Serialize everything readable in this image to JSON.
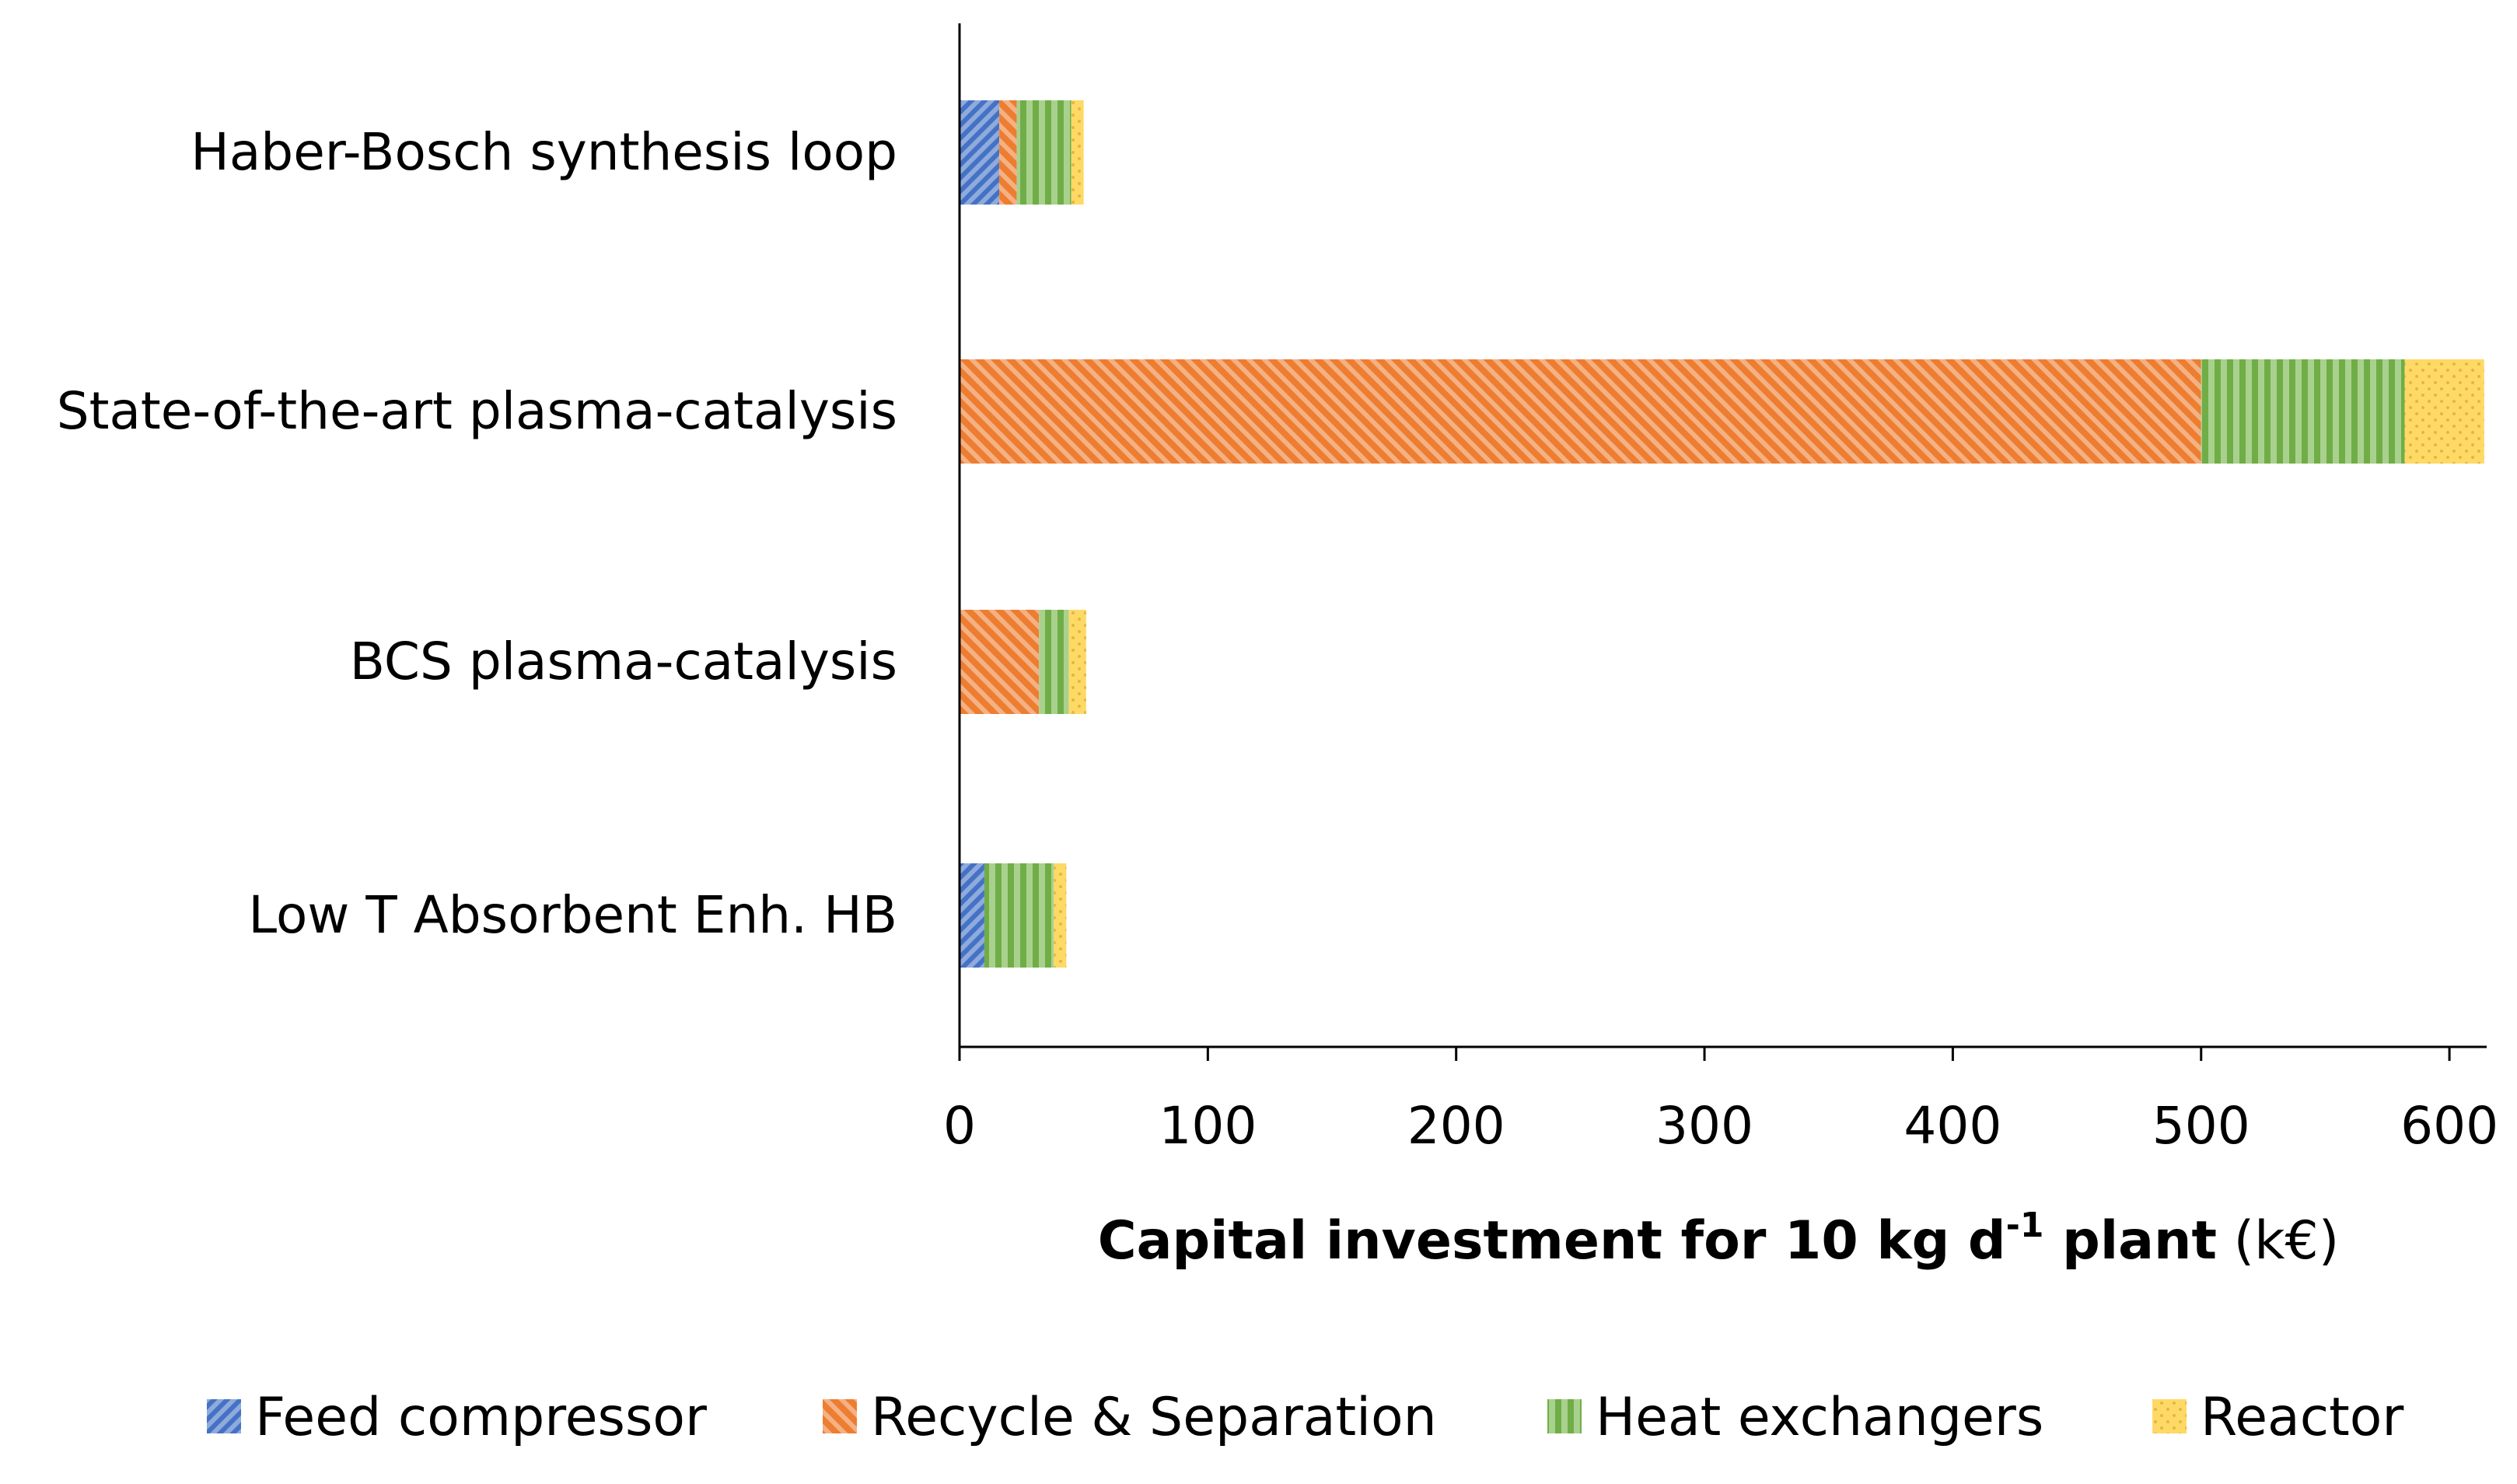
{
  "chart_data": {
    "type": "bar",
    "orientation": "horizontal",
    "stacked": true,
    "categories": [
      "Haber-Bosch synthesis loop",
      "State-of-the-art plasma-catalysis",
      "BCS plasma-catalysis",
      "Low T Absorbent Enh. HB"
    ],
    "series": [
      {
        "name": "Feed compressor",
        "color": "#4472C4",
        "pattern": "diagonal-dense",
        "values": [
          16,
          0,
          0,
          10
        ]
      },
      {
        "name": "Recycle & Separation",
        "color": "#ED7D31",
        "pattern": "diagonal-wide",
        "values": [
          7,
          500,
          32,
          0
        ]
      },
      {
        "name": "Heat exchangers",
        "color": "#70AD47",
        "pattern": "vertical",
        "values": [
          22,
          82,
          12,
          28
        ]
      },
      {
        "name": "Reactor",
        "color": "#FFD966",
        "pattern": "dots",
        "values": [
          5,
          32,
          7,
          5
        ]
      }
    ],
    "xlim": [
      0,
      615
    ],
    "xticks": [
      "0",
      "100",
      "200",
      "300",
      "400",
      "500",
      "600"
    ],
    "xlabel": {
      "bold_part": "Capital investment for 10 kg d",
      "superscript": "-1",
      "bold_suffix": " plant",
      "unit": " (k€)"
    },
    "title": "",
    "legend_position": "bottom"
  }
}
